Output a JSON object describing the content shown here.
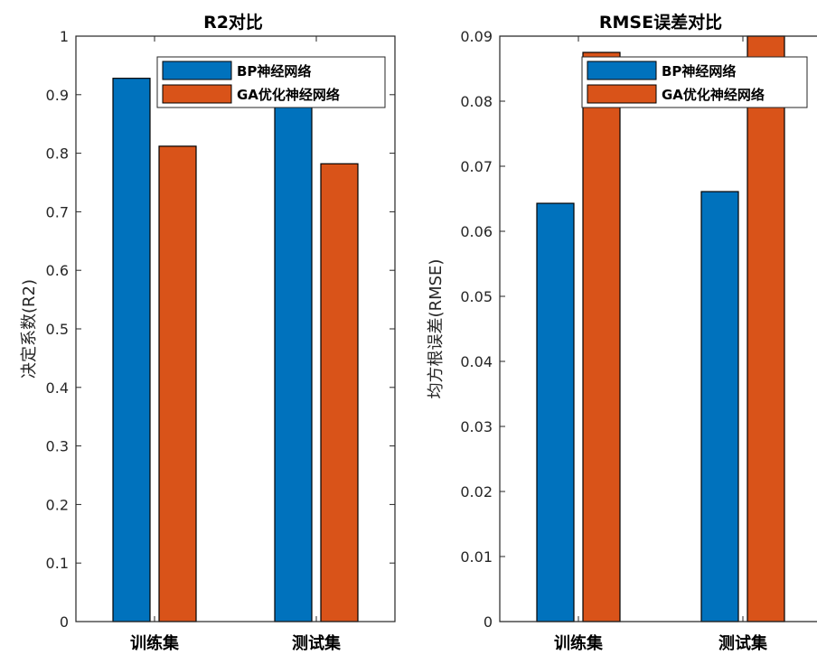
{
  "chart_data": [
    {
      "type": "bar",
      "title": "R2对比",
      "ylabel": "决定系数(R2)",
      "xlabel": "",
      "categories": [
        "训练集",
        "测试集"
      ],
      "series": [
        {
          "name": "BP神经网络",
          "values": [
            0.928,
            0.926
          ],
          "color": "#0072BD"
        },
        {
          "name": "GA优化神经网络",
          "values": [
            0.812,
            0.782
          ],
          "color": "#D95319"
        }
      ],
      "ylim": [
        0,
        1
      ],
      "yticks": [
        "0",
        "0.1",
        "0.2",
        "0.3",
        "0.4",
        "0.5",
        "0.6",
        "0.7",
        "0.8",
        "0.9",
        "1"
      ],
      "grid": false,
      "legend": "top-right"
    },
    {
      "type": "bar",
      "title": "RMSE误差对比",
      "ylabel": "均方根误差(RMSE)",
      "xlabel": "",
      "categories": [
        "训练集",
        "测试集"
      ],
      "series": [
        {
          "name": "BP神经网络",
          "values": [
            0.0643,
            0.0661
          ],
          "color": "#0072BD"
        },
        {
          "name": "GA优化神经网络",
          "values": [
            0.0875,
            0.0905
          ],
          "color": "#D95319"
        }
      ],
      "ylim": [
        0,
        0.09
      ],
      "yticks": [
        "0",
        "0.01",
        "0.02",
        "0.03",
        "0.04",
        "0.05",
        "0.06",
        "0.07",
        "0.08",
        "0.09"
      ],
      "grid": false,
      "legend": "top-right"
    }
  ]
}
